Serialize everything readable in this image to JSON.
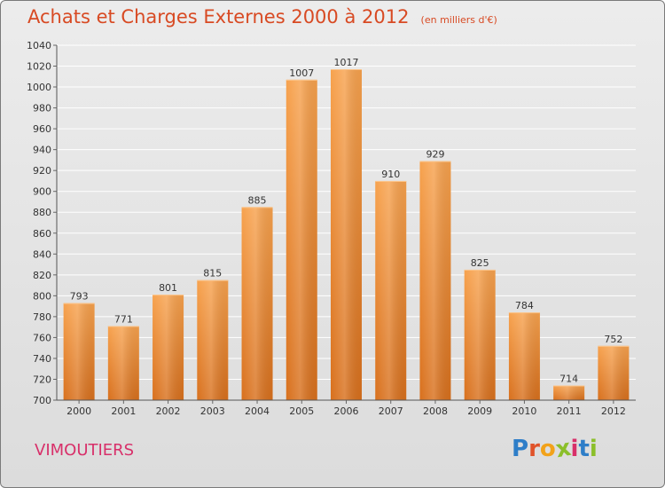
{
  "header": {
    "title": "Achats et Charges Externes 2000 à 2012",
    "unit": "(en milliers d'€)"
  },
  "footer": {
    "commune": "VIMOUTIERS",
    "logo_letters": [
      "P",
      "r",
      "o",
      "x",
      "i",
      "t",
      "i"
    ],
    "logo_colors": [
      "#2e7ec8",
      "#e0532a",
      "#f2a21a",
      "#8bbf2a",
      "#d8306a",
      "#2e7ec8",
      "#8bbf2a"
    ]
  },
  "colors": {
    "bar_light": "#f7a24e",
    "bar_dark": "#d8701d",
    "title": "#d84a23",
    "commune": "#d8306a"
  },
  "chart_data": {
    "type": "bar",
    "title": "Achats et Charges Externes 2000 à 2012",
    "subtitle": "(en milliers d'€)",
    "categories": [
      "2000",
      "2001",
      "2002",
      "2003",
      "2004",
      "2005",
      "2006",
      "2007",
      "2008",
      "2009",
      "2010",
      "2011",
      "2012"
    ],
    "values": [
      793,
      771,
      801,
      815,
      885,
      1007,
      1017,
      910,
      929,
      825,
      784,
      714,
      752
    ],
    "ylim": [
      700,
      1040
    ],
    "yticks": [
      700,
      720,
      740,
      760,
      780,
      800,
      820,
      840,
      860,
      880,
      900,
      920,
      940,
      960,
      980,
      1000,
      1020,
      1040
    ],
    "grid": true,
    "xlabel": "",
    "ylabel": ""
  }
}
